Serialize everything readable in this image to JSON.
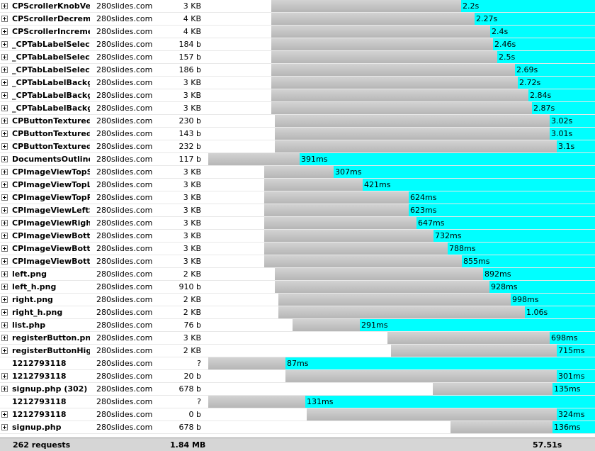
{
  "colors": {
    "bar_gray": "#bebebe",
    "bar_cyan": "#00ffff",
    "footer_bg": "#d6d6d6"
  },
  "requests": [
    {
      "name": "CPScrollerKnobVert",
      "domain": "280slides.com",
      "size": "3 KB",
      "time": "2.2s",
      "expand_icon": "plus-box-icon"
    },
    {
      "name": "CPScrollerDecreme",
      "domain": "280slides.com",
      "size": "4 KB",
      "time": "2.27s",
      "expand_icon": "plus-box-icon"
    },
    {
      "name": "CPScrollerIncremer",
      "domain": "280slides.com",
      "size": "4 KB",
      "time": "2.4s",
      "expand_icon": "plus-box-icon"
    },
    {
      "name": "_CPTabLabelSelect",
      "domain": "280slides.com",
      "size": "184 b",
      "time": "2.46s",
      "expand_icon": "plus-box-icon"
    },
    {
      "name": "_CPTabLabelSelect",
      "domain": "280slides.com",
      "size": "157 b",
      "time": "2.5s",
      "expand_icon": "plus-box-icon"
    },
    {
      "name": "_CPTabLabelSelect",
      "domain": "280slides.com",
      "size": "186 b",
      "time": "2.69s",
      "expand_icon": "plus-box-icon"
    },
    {
      "name": "_CPTabLabelBackgr",
      "domain": "280slides.com",
      "size": "3 KB",
      "time": "2.72s",
      "expand_icon": "plus-box-icon"
    },
    {
      "name": "_CPTabLabelBackgr",
      "domain": "280slides.com",
      "size": "3 KB",
      "time": "2.84s",
      "expand_icon": "plus-box-icon"
    },
    {
      "name": "_CPTabLabelBackgr",
      "domain": "280slides.com",
      "size": "3 KB",
      "time": "2.87s",
      "expand_icon": "plus-box-icon"
    },
    {
      "name": "CPButtonTexturedF",
      "domain": "280slides.com",
      "size": "230 b",
      "time": "3.02s",
      "expand_icon": "plus-box-icon"
    },
    {
      "name": "CPButtonTexturedF",
      "domain": "280slides.com",
      "size": "143 b",
      "time": "3.01s",
      "expand_icon": "plus-box-icon"
    },
    {
      "name": "CPButtonTexturedF",
      "domain": "280slides.com",
      "size": "232 b",
      "time": "3.1s",
      "expand_icon": "plus-box-icon"
    },
    {
      "name": "DocumentsOutlineV",
      "domain": "280slides.com",
      "size": "117 b",
      "time": "391ms",
      "expand_icon": "plus-box-icon"
    },
    {
      "name": "CPImageViewTopSl",
      "domain": "280slides.com",
      "size": "3 KB",
      "time": "307ms",
      "expand_icon": "plus-box-icon"
    },
    {
      "name": "CPImageViewTopLe",
      "domain": "280slides.com",
      "size": "3 KB",
      "time": "421ms",
      "expand_icon": "plus-box-icon"
    },
    {
      "name": "CPImageViewTopRi",
      "domain": "280slides.com",
      "size": "3 KB",
      "time": "624ms",
      "expand_icon": "plus-box-icon"
    },
    {
      "name": "CPImageViewLeftSl",
      "domain": "280slides.com",
      "size": "3 KB",
      "time": "623ms",
      "expand_icon": "plus-box-icon"
    },
    {
      "name": "CPImageViewRightS",
      "domain": "280slides.com",
      "size": "3 KB",
      "time": "647ms",
      "expand_icon": "plus-box-icon"
    },
    {
      "name": "CPImageViewBotto",
      "domain": "280slides.com",
      "size": "3 KB",
      "time": "732ms",
      "expand_icon": "plus-box-icon"
    },
    {
      "name": "CPImageViewBotto",
      "domain": "280slides.com",
      "size": "3 KB",
      "time": "788ms",
      "expand_icon": "plus-box-icon"
    },
    {
      "name": "CPImageViewBotto",
      "domain": "280slides.com",
      "size": "3 KB",
      "time": "855ms",
      "expand_icon": "plus-box-icon"
    },
    {
      "name": "left.png",
      "domain": "280slides.com",
      "size": "2 KB",
      "time": "892ms",
      "expand_icon": "plus-box-icon"
    },
    {
      "name": "left_h.png",
      "domain": "280slides.com",
      "size": "910 b",
      "time": "928ms",
      "expand_icon": "plus-box-icon"
    },
    {
      "name": "right.png",
      "domain": "280slides.com",
      "size": "2 KB",
      "time": "998ms",
      "expand_icon": "plus-box-icon"
    },
    {
      "name": "right_h.png",
      "domain": "280slides.com",
      "size": "2 KB",
      "time": "1.06s",
      "expand_icon": "plus-box-icon"
    },
    {
      "name": "list.php",
      "domain": "280slides.com",
      "size": "76 b",
      "time": "291ms",
      "expand_icon": "plus-box-icon"
    },
    {
      "name": "registerButton.png",
      "domain": "280slides.com",
      "size": "3 KB",
      "time": "698ms",
      "expand_icon": "plus-box-icon"
    },
    {
      "name": "registerButtonHigh",
      "domain": "280slides.com",
      "size": "2 KB",
      "time": "715ms",
      "expand_icon": "plus-box-icon"
    },
    {
      "name": "1212793118",
      "domain": "280slides.com",
      "size": "?",
      "time": "87ms",
      "expand_icon": ""
    },
    {
      "name": "1212793118",
      "domain": "280slides.com",
      "size": "20 b",
      "time": "301ms",
      "expand_icon": "plus-box-icon"
    },
    {
      "name": "signup.php (302)",
      "domain": "280slides.com",
      "size": "678 b",
      "time": "135ms",
      "expand_icon": "plus-box-icon"
    },
    {
      "name": "1212793118",
      "domain": "280slides.com",
      "size": "?",
      "time": "131ms",
      "expand_icon": ""
    },
    {
      "name": "1212793118",
      "domain": "280slides.com",
      "size": "0 b",
      "time": "324ms",
      "expand_icon": "plus-box-icon"
    },
    {
      "name": "signup.php",
      "domain": "280slides.com",
      "size": "678 b",
      "time": "136ms",
      "expand_icon": "plus-box-icon"
    }
  ],
  "footer": {
    "requests": "262 requests",
    "total_size": "1.84 MB",
    "total_time": "57.51s"
  }
}
